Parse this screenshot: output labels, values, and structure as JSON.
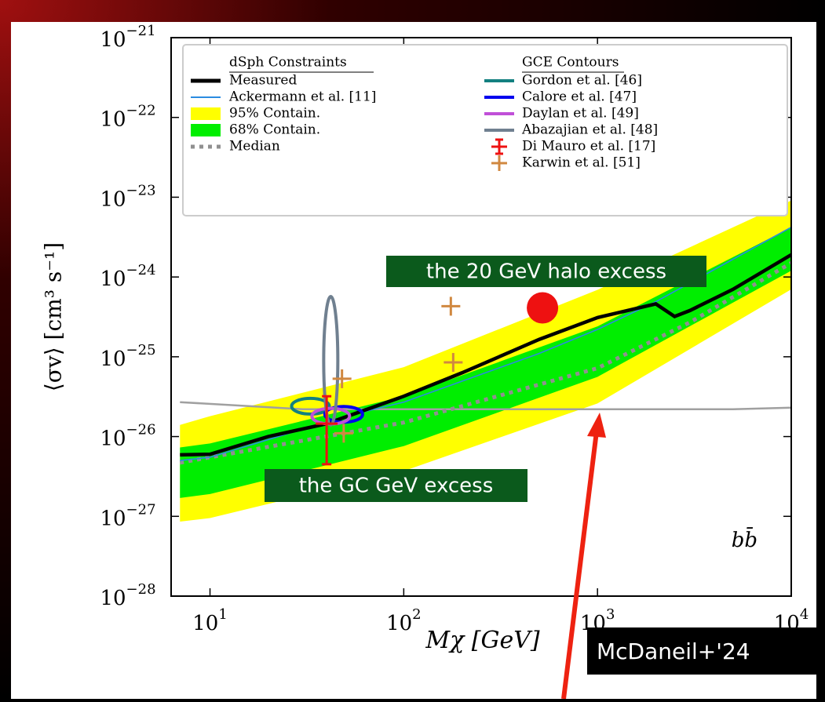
{
  "chart_data": {
    "type": "line",
    "xlabel": "Mχ [GeV]",
    "ylabel": "⟨σv⟩ [cm³ s⁻¹]",
    "panel_label": "bb̄",
    "xscale": "log",
    "yscale": "log",
    "xlim": [
      6.3,
      10000
    ],
    "ylim": [
      1e-28,
      1e-21
    ],
    "xticks": [
      {
        "value": 10,
        "label": "10",
        "exponent": "1"
      },
      {
        "value": 100,
        "label": "10",
        "exponent": "2"
      },
      {
        "value": 1000,
        "label": "10",
        "exponent": "3"
      },
      {
        "value": 10000,
        "label": "10",
        "exponent": "4"
      }
    ],
    "yticks": [
      {
        "value": 1e-21,
        "label": "10",
        "exponent": "−21"
      },
      {
        "value": 1e-22,
        "label": "10",
        "exponent": "−22"
      },
      {
        "value": 1e-23,
        "label": "10",
        "exponent": "−23"
      },
      {
        "value": 1e-24,
        "label": "10",
        "exponent": "−24"
      },
      {
        "value": 1e-25,
        "label": "10",
        "exponent": "−25"
      },
      {
        "value": 1e-26,
        "label": "10",
        "exponent": "−26"
      },
      {
        "value": 1e-27,
        "label": "10",
        "exponent": "−27"
      },
      {
        "value": 1e-28,
        "label": "10",
        "exponent": "−28"
      }
    ],
    "legend_title_left": "dSph Constraints",
    "legend_title_right": "GCE Contours",
    "series": [
      {
        "name": "95% Contain.",
        "color": "#ffff00",
        "style": "band",
        "x": [
          7,
          10,
          100,
          1000,
          10000
        ],
        "upper": [
          1.4e-26,
          1.8e-26,
          7.4e-26,
          6.9e-25,
          9.1e-24
        ],
        "lower": [
          8.6e-28,
          9.5e-28,
          3.7e-27,
          2.6e-26,
          7e-25
        ]
      },
      {
        "name": "68% Contain.",
        "color": "#00ee00",
        "style": "band",
        "x": [
          7,
          10,
          100,
          1000,
          10000
        ],
        "upper": [
          7.3e-27,
          8.2e-27,
          3.2e-26,
          2.4e-25,
          4.2e-24
        ],
        "lower": [
          1.7e-27,
          1.9e-27,
          7.6e-27,
          5.6e-26,
          1.2e-24
        ]
      },
      {
        "color": "#a0a0a0",
        "style": "line",
        "x": [
          7,
          30,
          100,
          1000,
          5000,
          10000
        ],
        "values": [
          2.7e-26,
          2.2e-26,
          2.2e-26,
          2.2e-26,
          2.2e-26,
          2.3e-26
        ]
      },
      {
        "name": "Median",
        "color": "#909090",
        "style": "dotted",
        "x": [
          7,
          100,
          1000,
          3000,
          10000
        ],
        "values": [
          4.7e-27,
          1.5e-26,
          7.2e-26,
          2.7e-25,
          1.5e-24
        ]
      },
      {
        "name": "Ackermann et al. [11]",
        "color": "#2a8be0",
        "style": "thin",
        "x": [
          7,
          10,
          50,
          100,
          500,
          1000,
          2000,
          10000
        ],
        "values": [
          5e-27,
          5.5e-27,
          1.8e-26,
          2.7e-26,
          1.1e-25,
          2.2e-25,
          4.9e-25,
          4.2e-24
        ]
      },
      {
        "name": "Measured",
        "color": "#000000",
        "style": "thick",
        "x": [
          7,
          10,
          20,
          40,
          100,
          200,
          500,
          1000,
          2000,
          2500,
          3000,
          5000,
          10000
        ],
        "values": [
          5.9e-27,
          6e-27,
          1e-26,
          1.45e-26,
          3.2e-26,
          6.3e-26,
          1.65e-25,
          3.1e-25,
          4.6e-25,
          3.2e-25,
          3.8e-25,
          7e-25,
          1.9e-24
        ]
      }
    ],
    "gce_contours": [
      {
        "name": "Gordon et al. [46]",
        "color": "#138080",
        "marker": "ellipse",
        "x": 33,
        "y": 2.4e-26
      },
      {
        "name": "Calore et al. [47]",
        "color": "#0000ee",
        "marker": "ellipse",
        "x": 49,
        "y": 1.9e-26
      },
      {
        "name": "Daylan et al. [49]",
        "color": "#c050d8",
        "marker": "ellipse",
        "x": 42,
        "y": 1.8e-26
      },
      {
        "name": "Abazajian et al. [48]",
        "color": "#708090",
        "marker": "tall-ellipse",
        "x": 42,
        "y": 8.9e-26
      },
      {
        "name": "Di Mauro et al. [17]",
        "color": "#ee1111",
        "marker": "errorbar",
        "x": 40,
        "y": 1.45e-26,
        "ylow": 4.5e-27,
        "yhigh": 3.2e-26
      },
      {
        "name": "Karwin et al. [51]",
        "color": "#d08840",
        "marker": "cross",
        "x": [
          48,
          49,
          175,
          180
        ],
        "y": [
          5.3e-26,
          1.1e-26,
          4.3e-25,
          8.5e-26
        ]
      }
    ],
    "halo_point": {
      "x": 520,
      "y": 4.1e-25,
      "color": "#ee1111"
    },
    "annotations": [
      "the 20 GeV halo excess",
      "the GC GeV excess",
      "McDaneil+'24"
    ]
  }
}
